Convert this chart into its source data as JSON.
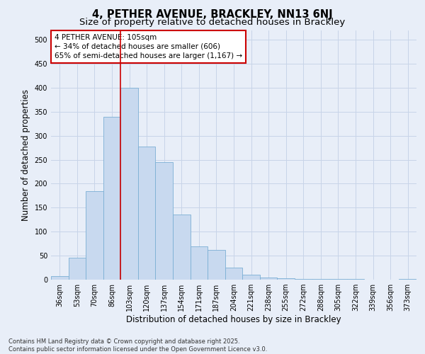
{
  "title": "4, PETHER AVENUE, BRACKLEY, NN13 6NJ",
  "subtitle": "Size of property relative to detached houses in Brackley",
  "xlabel": "Distribution of detached houses by size in Brackley",
  "ylabel": "Number of detached properties",
  "categories": [
    "36sqm",
    "53sqm",
    "70sqm",
    "86sqm",
    "103sqm",
    "120sqm",
    "137sqm",
    "154sqm",
    "171sqm",
    "187sqm",
    "204sqm",
    "221sqm",
    "238sqm",
    "255sqm",
    "272sqm",
    "288sqm",
    "305sqm",
    "322sqm",
    "339sqm",
    "356sqm",
    "373sqm"
  ],
  "values": [
    8,
    45,
    185,
    340,
    400,
    278,
    245,
    135,
    70,
    62,
    25,
    10,
    5,
    3,
    2,
    2,
    1,
    1,
    0,
    0,
    1
  ],
  "bar_color": "#c8d9ef",
  "bar_edge_color": "#7bafd4",
  "vline_x_index": 4,
  "vline_color": "#cc0000",
  "annotation_text": "4 PETHER AVENUE: 105sqm\n← 34% of detached houses are smaller (606)\n65% of semi-detached houses are larger (1,167) →",
  "annotation_box_color": "#ffffff",
  "annotation_box_edge_color": "#cc0000",
  "ylim": [
    0,
    520
  ],
  "yticks": [
    0,
    50,
    100,
    150,
    200,
    250,
    300,
    350,
    400,
    450,
    500
  ],
  "grid_color": "#c8d4e8",
  "background_color": "#e8eef8",
  "footer_text": "Contains HM Land Registry data © Crown copyright and database right 2025.\nContains public sector information licensed under the Open Government Licence v3.0.",
  "title_fontsize": 10.5,
  "subtitle_fontsize": 9.5,
  "axis_label_fontsize": 8.5,
  "tick_fontsize": 7,
  "annotation_fontsize": 7.5,
  "footer_fontsize": 6
}
